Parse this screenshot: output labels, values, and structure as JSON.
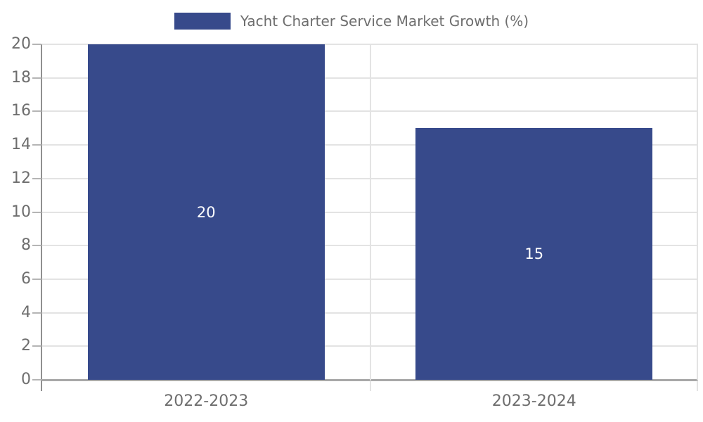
{
  "chart_data": {
    "type": "bar",
    "title": "Yacht Charter Service Market Growth (%)",
    "legend": {
      "position": "top-center",
      "entries": [
        "Yacht Charter Service Market Growth (%)"
      ]
    },
    "categories": [
      "2022-2023",
      "2023-2024"
    ],
    "values": [
      20,
      15
    ],
    "bar_labels": [
      "20",
      "15"
    ],
    "xlabel": "",
    "ylabel": "",
    "ylim": [
      0,
      20
    ],
    "ytick_step": 2,
    "yticks": [
      0,
      2,
      4,
      6,
      8,
      10,
      12,
      14,
      16,
      18,
      20
    ],
    "grid": {
      "horizontal": true,
      "category_separators": true
    },
    "colors": {
      "bar": "#374a8b",
      "bar_label": "#ffffff",
      "tick_label": "#6e6e6e",
      "gridline": "#e3e3e3",
      "axis_y": "#909090",
      "axis_x": "#a8a8a8",
      "tick_mark": "#b5b5b5",
      "background": "#ffffff"
    }
  }
}
